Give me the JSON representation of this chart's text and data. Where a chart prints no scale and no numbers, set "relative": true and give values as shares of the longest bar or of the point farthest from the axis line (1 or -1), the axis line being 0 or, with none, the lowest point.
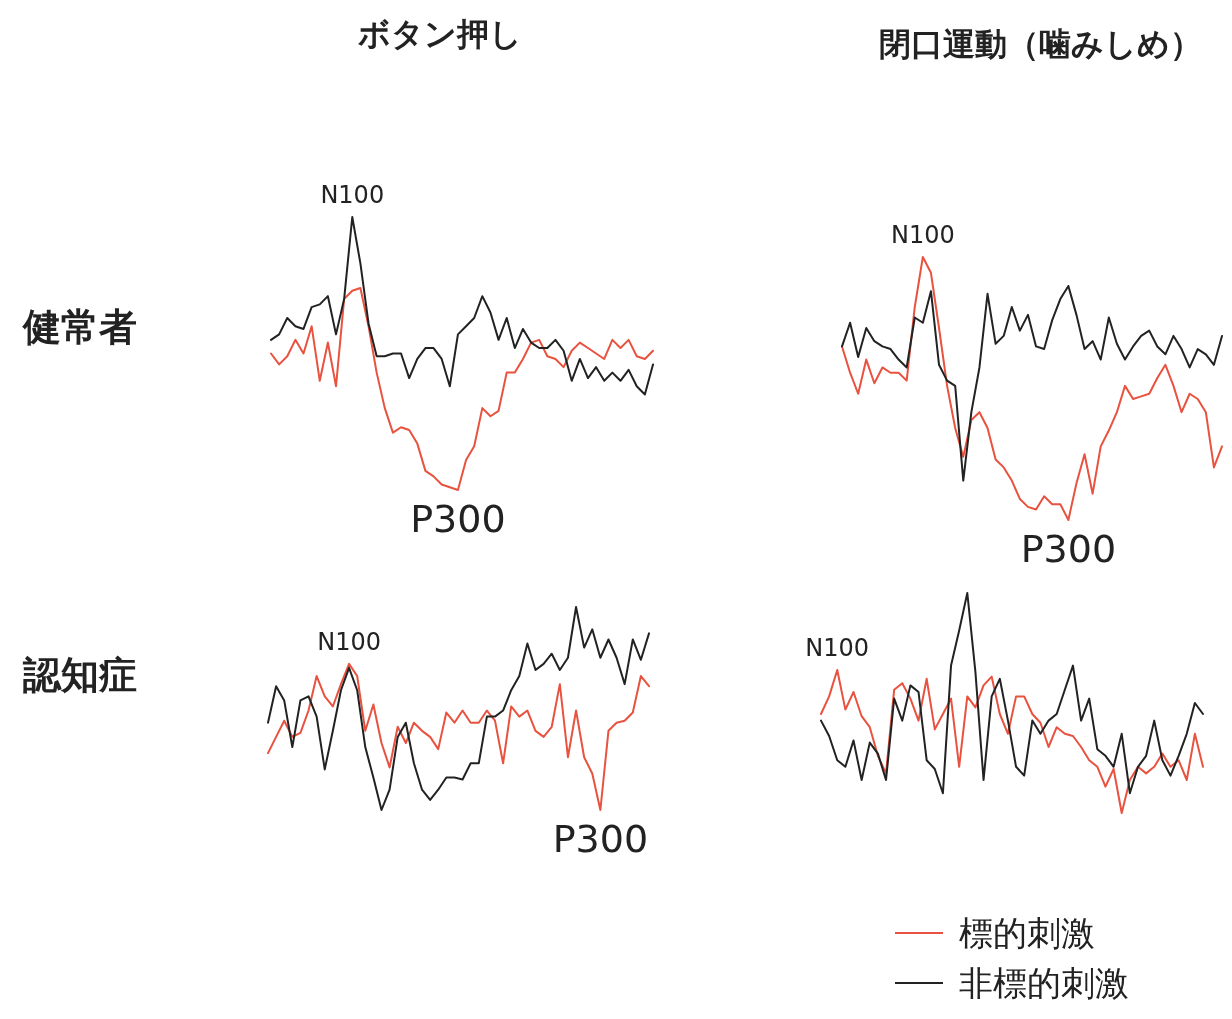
{
  "chart_data": [
    {
      "type": "line",
      "relative": true,
      "title": "ボタン押し",
      "ylabel": "健常者",
      "legend": false,
      "categories": [
        null,
        null,
        null,
        null,
        null,
        null,
        null,
        null,
        null,
        null,
        null,
        null,
        null,
        null,
        null,
        null,
        null,
        null,
        null,
        null,
        null,
        null,
        null,
        null,
        null,
        null,
        null,
        null,
        null,
        null,
        null,
        null,
        null,
        null,
        null,
        null,
        null,
        null,
        null,
        null,
        null,
        null,
        null,
        null,
        null,
        null,
        null,
        null
      ],
      "series": [
        {
          "color": "#e8523f",
          "values": [
            0.5,
            0.46,
            0.49,
            0.55,
            0.5,
            0.6,
            0.4,
            0.54,
            0.38,
            0.7,
            0.73,
            0.74,
            0.6,
            0.43,
            0.3,
            0.21,
            0.23,
            0.22,
            0.17,
            0.07,
            0.05,
            0.02,
            0.01,
            0,
            0.11,
            0.16,
            0.3,
            0.27,
            0.29,
            0.43,
            0.43,
            0.48,
            0.54,
            0.55,
            0.49,
            0.48,
            0.45,
            0.51,
            0.54,
            0.52,
            0.5,
            0.48,
            0.55,
            0.52,
            0.55,
            0.49,
            0.48,
            0.51
          ]
        },
        {
          "color": "#222222",
          "values": [
            0.55,
            0.57,
            0.63,
            0.6,
            0.59,
            0.67,
            0.68,
            0.71,
            0.57,
            0.7,
            1.0,
            0.83,
            0.61,
            0.49,
            0.49,
            0.5,
            0.5,
            0.41,
            0.48,
            0.52,
            0.52,
            0.48,
            0.38,
            0.57,
            0.6,
            0.63,
            0.71,
            0.65,
            0.55,
            0.63,
            0.52,
            0.59,
            0.54,
            0.52,
            0.52,
            0.55,
            0.51,
            0.4,
            0.48,
            0.41,
            0.45,
            0.4,
            0.43,
            0.4,
            0.44,
            0.38,
            0.35,
            0.46
          ]
        }
      ],
      "annotations": [
        {
          "text": "N100",
          "y": 1.0
        },
        {
          "text": "P300",
          "y": 0
        }
      ]
    },
    {
      "type": "line",
      "relative": true,
      "title": "閉口運動（噛みしめ）",
      "legend": false,
      "categories": [
        null,
        null,
        null,
        null,
        null,
        null,
        null,
        null,
        null,
        null,
        null,
        null,
        null,
        null,
        null,
        null,
        null,
        null,
        null,
        null,
        null,
        null,
        null,
        null,
        null,
        null,
        null,
        null,
        null,
        null,
        null,
        null,
        null,
        null,
        null,
        null,
        null,
        null,
        null,
        null,
        null,
        null,
        null,
        null,
        null,
        null,
        null,
        null
      ],
      "series": [
        {
          "color": "#e8523f",
          "values": [
            0.66,
            0.56,
            0.48,
            0.61,
            0.52,
            0.58,
            0.56,
            0.56,
            0.53,
            0.81,
            1.0,
            0.94,
            0.73,
            0.51,
            0.35,
            0.24,
            0.38,
            0.41,
            0.35,
            0.23,
            0.2,
            0.15,
            0.08,
            0.05,
            0.04,
            0.09,
            0.06,
            0.06,
            0,
            0.14,
            0.25,
            0.1,
            0.28,
            0.34,
            0.41,
            0.51,
            0.46,
            0.47,
            0.48,
            0.54,
            0.59,
            0.51,
            0.41,
            0.48,
            0.46,
            0.41,
            0.2,
            0.28
          ]
        },
        {
          "color": "#222222",
          "values": [
            0.66,
            0.75,
            0.62,
            0.73,
            0.68,
            0.66,
            0.65,
            0.61,
            0.58,
            0.77,
            0.75,
            0.87,
            0.59,
            0.53,
            0.51,
            0.15,
            0.41,
            0.58,
            0.86,
            0.67,
            0.7,
            0.81,
            0.72,
            0.78,
            0.66,
            0.65,
            0.76,
            0.84,
            0.89,
            0.78,
            0.65,
            0.68,
            0.61,
            0.77,
            0.67,
            0.61,
            0.66,
            0.7,
            0.72,
            0.66,
            0.63,
            0.7,
            0.65,
            0.58,
            0.65,
            0.63,
            0.59,
            0.7
          ]
        }
      ],
      "annotations": [
        {
          "text": "N100",
          "y": 1.0
        },
        {
          "text": "P300",
          "y": 0
        }
      ]
    },
    {
      "type": "line",
      "relative": true,
      "ylabel": "認知症",
      "legend": false,
      "categories": [
        null,
        null,
        null,
        null,
        null,
        null,
        null,
        null,
        null,
        null,
        null,
        null,
        null,
        null,
        null,
        null,
        null,
        null,
        null,
        null,
        null,
        null,
        null,
        null,
        null,
        null,
        null,
        null,
        null,
        null,
        null,
        null,
        null,
        null,
        null,
        null,
        null,
        null,
        null,
        null,
        null,
        null,
        null,
        null,
        null,
        null,
        null,
        null
      ],
      "series": [
        {
          "color": "#e8523f",
          "values": [
            0.28,
            0.36,
            0.44,
            0.36,
            0.38,
            0.49,
            0.66,
            0.56,
            0.51,
            0.62,
            0.72,
            0.66,
            0.39,
            0.52,
            0.33,
            0.21,
            0.41,
            0.33,
            0.43,
            0.39,
            0.36,
            0.3,
            0.48,
            0.43,
            0.49,
            0.43,
            0.43,
            0.49,
            0.44,
            0.23,
            0.51,
            0.46,
            0.49,
            0.39,
            0.36,
            0.41,
            0.62,
            0.26,
            0.49,
            0.26,
            0.18,
            0,
            0.39,
            0.43,
            0.44,
            0.48,
            0.66,
            0.61
          ]
        },
        {
          "color": "#222222",
          "values": [
            0.43,
            0.61,
            0.54,
            0.31,
            0.54,
            0.56,
            0.46,
            0.2,
            0.39,
            0.59,
            0.7,
            0.59,
            0.31,
            0.16,
            0,
            0.1,
            0.36,
            0.43,
            0.23,
            0.1,
            0.05,
            0.1,
            0.16,
            0.16,
            0.15,
            0.23,
            0.23,
            0.46,
            0.46,
            0.49,
            0.59,
            0.66,
            0.82,
            0.69,
            0.72,
            0.77,
            0.69,
            0.75,
            1.0,
            0.8,
            0.89,
            0.75,
            0.84,
            0.75,
            0.62,
            0.84,
            0.74,
            0.87
          ]
        }
      ],
      "annotations": [
        {
          "text": "N100",
          "y": 0.72
        },
        {
          "text": "P300",
          "y": 0
        }
      ]
    },
    {
      "type": "line",
      "relative": true,
      "legend": "bottom right",
      "categories": [
        null,
        null,
        null,
        null,
        null,
        null,
        null,
        null,
        null,
        null,
        null,
        null,
        null,
        null,
        null,
        null,
        null,
        null,
        null,
        null,
        null,
        null,
        null,
        null,
        null,
        null,
        null,
        null,
        null,
        null,
        null,
        null,
        null,
        null,
        null,
        null,
        null,
        null,
        null,
        null,
        null,
        null,
        null,
        null,
        null,
        null,
        null,
        null
      ],
      "series": [
        {
          "name": "標的刺激",
          "color": "#e8523f",
          "values": [
            0.45,
            0.53,
            0.65,
            0.47,
            0.55,
            0.44,
            0.39,
            0.26,
            0.18,
            0.56,
            0.59,
            0.52,
            0.42,
            0.61,
            0.38,
            0.45,
            0.52,
            0.21,
            0.53,
            0.48,
            0.58,
            0.62,
            0.45,
            0.36,
            0.53,
            0.53,
            0.45,
            0.41,
            0.3,
            0.39,
            0.36,
            0.35,
            0.3,
            0.24,
            0.21,
            0.12,
            0.2,
            0,
            0.15,
            0.21,
            0.18,
            0.21,
            0.27,
            0.21,
            0.24,
            0.15,
            0.36,
            0.21
          ]
        },
        {
          "name": "非標的刺激",
          "color": "#222222",
          "values": [
            0.42,
            0.35,
            0.24,
            0.21,
            0.33,
            0.15,
            0.32,
            0.27,
            0.15,
            0.52,
            0.42,
            0.58,
            0.55,
            0.24,
            0.2,
            0.09,
            0.67,
            0.83,
            1.0,
            0.64,
            0.15,
            0.53,
            0.61,
            0.42,
            0.21,
            0.17,
            0.42,
            0.36,
            0.42,
            0.45,
            0.56,
            0.67,
            0.42,
            0.52,
            0.29,
            0.26,
            0.21,
            0.36,
            0.09,
            0.21,
            0.26,
            0.42,
            0.24,
            0.17,
            0.26,
            0.36,
            0.5,
            0.45
          ]
        }
      ],
      "annotations": [
        {
          "text": "N100",
          "y": 0.65
        }
      ]
    }
  ]
}
